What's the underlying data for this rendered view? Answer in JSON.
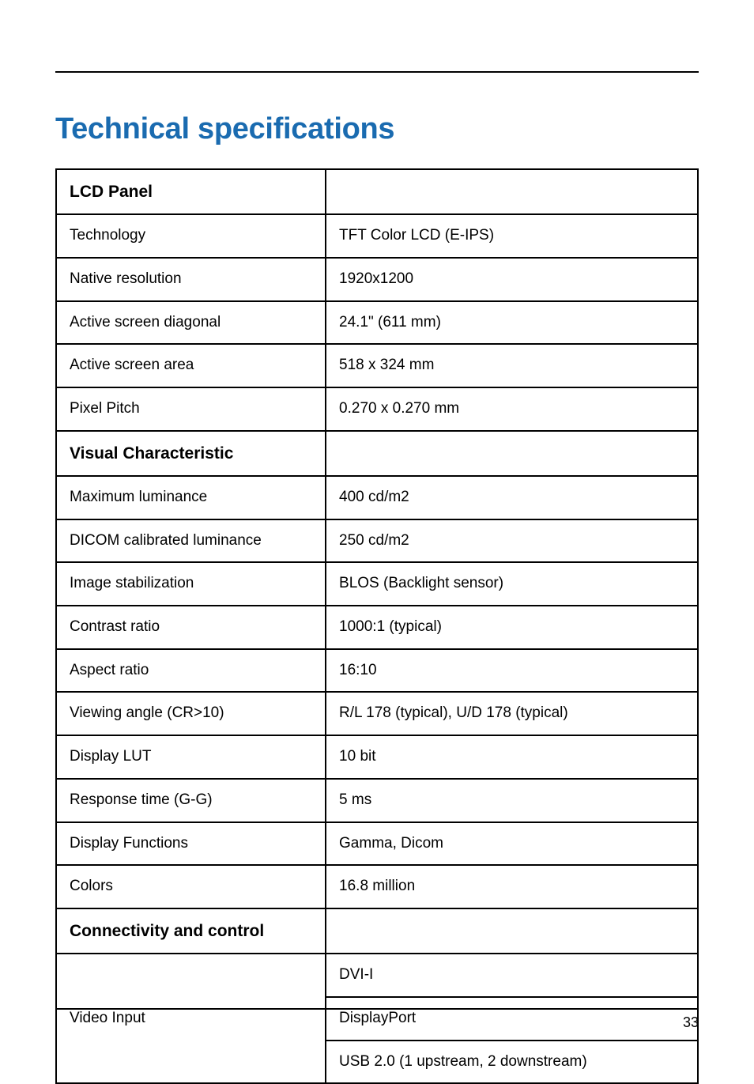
{
  "doc": {
    "title": "Technical specifications",
    "page_number": "33",
    "colors": {
      "title": "#1a6bb0",
      "text": "#000000",
      "border": "#000000",
      "background": "#ffffff"
    },
    "typography": {
      "title_fontsize_pt": 29,
      "section_fontsize_pt": 16,
      "body_fontsize_pt": 14
    },
    "table": {
      "column_widths_pct": [
        42,
        58
      ],
      "rows": [
        {
          "type": "section",
          "label": "LCD Panel",
          "value": ""
        },
        {
          "type": "data",
          "label": "Technology",
          "value": "TFT Color LCD (E-IPS)"
        },
        {
          "type": "data",
          "label": "Native resolution",
          "value": "1920x1200"
        },
        {
          "type": "data",
          "label": "Active screen diagonal",
          "value": "24.1\" (611 mm)"
        },
        {
          "type": "data",
          "label": "Active screen area",
          "value": "518 x 324 mm"
        },
        {
          "type": "data",
          "label": "Pixel Pitch",
          "value": "0.270 x 0.270 mm"
        },
        {
          "type": "section",
          "label": "Visual Characteristic",
          "value": ""
        },
        {
          "type": "data",
          "label": "Maximum luminance",
          "value": "400 cd/m2"
        },
        {
          "type": "data",
          "label": "DICOM calibrated luminance",
          "value": "250 cd/m2"
        },
        {
          "type": "data",
          "label": "Image stabilization",
          "value": "BLOS (Backlight sensor)"
        },
        {
          "type": "data",
          "label": "Contrast ratio",
          "value": "1000:1 (typical)"
        },
        {
          "type": "data",
          "label": "Aspect ratio",
          "value": "16:10"
        },
        {
          "type": "data",
          "label": "Viewing angle (CR>10)",
          "value": "R/L 178 (typical), U/D 178 (typical)"
        },
        {
          "type": "data",
          "label": "Display LUT",
          "value": "10 bit"
        },
        {
          "type": "data",
          "label": "Response time   (G-G)",
          "value": "5 ms"
        },
        {
          "type": "data",
          "label": "Display Functions",
          "value": "Gamma, Dicom"
        },
        {
          "type": "data",
          "label": "Colors",
          "value": "16.8 million"
        },
        {
          "type": "section",
          "label": "Connectivity and control",
          "value": ""
        },
        {
          "type": "data",
          "label": "",
          "value": "DVI-I",
          "rowspan_start": true,
          "rowspan": 3,
          "span_label": "Video Input"
        },
        {
          "type": "data",
          "label": "",
          "value": "DisplayPort",
          "rowspan_cont": true
        },
        {
          "type": "data",
          "label": "",
          "value": "USB 2.0 (1 upstream, 2 downstream)",
          "rowspan_cont": true
        }
      ]
    }
  }
}
